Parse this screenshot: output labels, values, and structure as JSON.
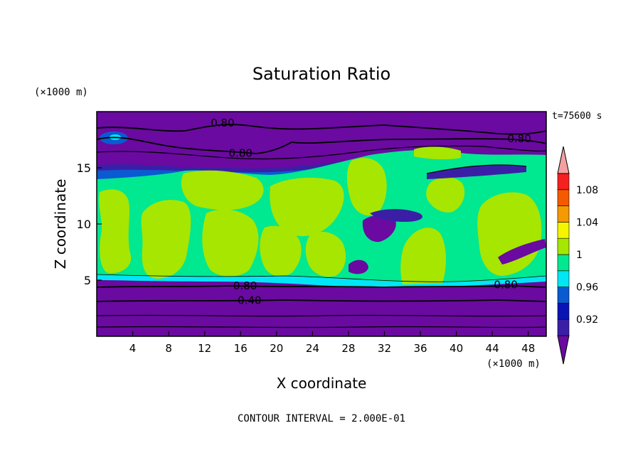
{
  "chart_data": {
    "type": "heatmap",
    "title": "Saturation Ratio",
    "xlabel": "X coordinate",
    "ylabel": "Z coordinate",
    "x_unit": "(×1000 m)",
    "y_unit": "(×1000 m)",
    "time_label": "t=75600 s",
    "footer": "CONTOUR INTERVAL = 2.000E-01",
    "xlim": [
      0,
      50
    ],
    "ylim": [
      0,
      20
    ],
    "x_ticks": [
      4,
      8,
      12,
      16,
      20,
      24,
      28,
      32,
      36,
      40,
      44,
      48
    ],
    "y_ticks": [
      5,
      10,
      15
    ],
    "contour_labels": [
      {
        "text": "0.80",
        "x": 14,
        "z": 19
      },
      {
        "text": "0.80",
        "x": 16,
        "z": 16.3
      },
      {
        "text": "0.80",
        "x": 47,
        "z": 17.6
      },
      {
        "text": "0.80",
        "x": 16.5,
        "z": 4.5
      },
      {
        "text": "0.40",
        "x": 17,
        "z": 3.2
      },
      {
        "text": "0.80",
        "x": 45.5,
        "z": 4.6
      }
    ],
    "colorbar": {
      "colors": [
        "#6a0aa0",
        "#3a1fa6",
        "#0a14b4",
        "#0a5ad2",
        "#00e6f5",
        "#00e890",
        "#a6e600",
        "#f5f500",
        "#f59a00",
        "#f55a00",
        "#f52020",
        "#f5a0a0"
      ],
      "labels": [
        "0.92",
        "0.96",
        "1",
        "1.04",
        "1.08"
      ]
    }
  }
}
